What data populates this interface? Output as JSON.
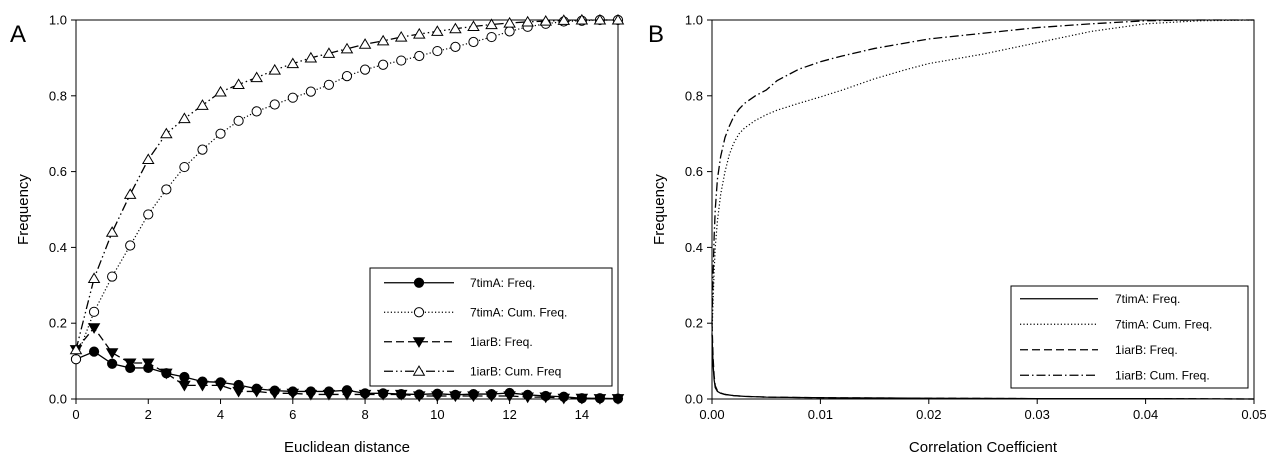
{
  "chart_data": [
    {
      "type": "line",
      "panel_label": "A",
      "xlabel": "Euclidean distance",
      "ylabel": "Frequency",
      "xlim": [
        0,
        15
      ],
      "ylim": [
        0,
        1.0
      ],
      "x_ticks": [
        0,
        2,
        4,
        6,
        8,
        10,
        12,
        14
      ],
      "x_tick_labels": [
        "0",
        "2",
        "4",
        "6",
        "8",
        "10",
        "12",
        "14"
      ],
      "y_ticks": [
        0,
        0.2,
        0.4,
        0.6,
        0.8,
        1.0
      ],
      "y_tick_labels": [
        "0.0",
        "0.2",
        "0.4",
        "0.6",
        "0.8",
        "1.0"
      ],
      "grid": false,
      "legend_position": "bottom-right",
      "x": [
        0,
        0.5,
        1,
        1.5,
        2,
        2.5,
        3,
        3.5,
        4,
        4.5,
        5,
        5.5,
        6,
        6.5,
        7,
        7.5,
        8,
        8.5,
        9,
        9.5,
        10,
        10.5,
        11,
        11.5,
        12,
        12.5,
        13,
        13.5,
        14,
        14.5,
        15
      ],
      "series": [
        {
          "name": "7timA: Freq.",
          "marker": "filled-circle",
          "line": "solid",
          "values": [
            0.105,
            0.125,
            0.093,
            0.082,
            0.082,
            0.068,
            0.058,
            0.046,
            0.044,
            0.037,
            0.027,
            0.022,
            0.02,
            0.02,
            0.02,
            0.023,
            0.015,
            0.015,
            0.013,
            0.012,
            0.014,
            0.011,
            0.013,
            0.013,
            0.016,
            0.011,
            0.008,
            0.006,
            0.002,
            0.002,
            0.001
          ]
        },
        {
          "name": "7timA: Cum. Freq.",
          "marker": "open-circle",
          "line": "dotted",
          "values": [
            0.105,
            0.23,
            0.323,
            0.405,
            0.487,
            0.553,
            0.612,
            0.658,
            0.7,
            0.734,
            0.759,
            0.777,
            0.795,
            0.811,
            0.829,
            0.852,
            0.869,
            0.882,
            0.893,
            0.905,
            0.918,
            0.929,
            0.942,
            0.955,
            0.97,
            0.982,
            0.99,
            0.996,
            0.998,
            1.0,
            1.0
          ]
        },
        {
          "name": "1iarB: Freq.",
          "marker": "filled-triangle-down",
          "line": "dashed",
          "values": [
            0.13,
            0.188,
            0.122,
            0.095,
            0.095,
            0.068,
            0.036,
            0.036,
            0.036,
            0.02,
            0.02,
            0.015,
            0.015,
            0.012,
            0.012,
            0.012,
            0.012,
            0.012,
            0.012,
            0.008,
            0.008,
            0.008,
            0.008,
            0.008,
            0.008,
            0.005,
            0.005,
            0.002,
            0.002,
            0.001,
            0.001
          ]
        },
        {
          "name": "1iarB: Cum. Freq",
          "marker": "open-triangle-up",
          "line": "dash-dot-dot",
          "values": [
            0.13,
            0.318,
            0.44,
            0.54,
            0.632,
            0.7,
            0.74,
            0.775,
            0.81,
            0.83,
            0.848,
            0.868,
            0.885,
            0.9,
            0.912,
            0.924,
            0.936,
            0.945,
            0.955,
            0.963,
            0.97,
            0.977,
            0.983,
            0.988,
            0.992,
            0.995,
            0.997,
            0.999,
            1.0,
            1.0,
            1.0
          ]
        }
      ]
    },
    {
      "type": "line",
      "panel_label": "B",
      "xlabel": "Correlation Coefficient",
      "ylabel": "Frequency",
      "xlim": [
        0,
        0.05
      ],
      "ylim": [
        0,
        1.0
      ],
      "x_ticks": [
        0,
        0.01,
        0.02,
        0.03,
        0.04,
        0.05
      ],
      "x_tick_labels": [
        "0.00",
        "0.01",
        "0.02",
        "0.03",
        "0.04",
        "0.05"
      ],
      "y_ticks": [
        0,
        0.2,
        0.4,
        0.6,
        0.8,
        1.0
      ],
      "y_tick_labels": [
        "0.0",
        "0.2",
        "0.4",
        "0.6",
        "0.8",
        "1.0"
      ],
      "grid": false,
      "legend_position": "bottom-right",
      "series": [
        {
          "name": "7timA: Freq.",
          "line": "solid",
          "x": [
            0,
            0.0001,
            0.0002,
            0.0003,
            0.0005,
            0.0008,
            0.0012,
            0.002,
            0.003,
            0.005,
            0.008,
            0.012,
            0.02,
            0.03,
            0.04,
            0.05
          ],
          "y": [
            0.17,
            0.09,
            0.05,
            0.03,
            0.02,
            0.015,
            0.012,
            0.009,
            0.007,
            0.005,
            0.004,
            0.003,
            0.002,
            0.001,
            0.001,
            0.0
          ]
        },
        {
          "name": "7timA: Cum. Freq.",
          "line": "dotted",
          "x": [
            0,
            0.0001,
            0.0002,
            0.0003,
            0.0005,
            0.0008,
            0.0012,
            0.0016,
            0.002,
            0.0025,
            0.003,
            0.004,
            0.005,
            0.006,
            0.008,
            0.01,
            0.012,
            0.015,
            0.018,
            0.02,
            0.025,
            0.03,
            0.035,
            0.04,
            0.045,
            0.05
          ],
          "y": [
            0.17,
            0.26,
            0.34,
            0.4,
            0.47,
            0.54,
            0.6,
            0.645,
            0.675,
            0.7,
            0.715,
            0.735,
            0.75,
            0.762,
            0.78,
            0.797,
            0.815,
            0.845,
            0.87,
            0.885,
            0.91,
            0.94,
            0.97,
            0.99,
            0.998,
            1.0
          ]
        },
        {
          "name": "1iarB: Freq.",
          "line": "dashed",
          "x": [
            0,
            0.0001,
            0.0002,
            0.0003,
            0.0005,
            0.0008,
            0.0012,
            0.002,
            0.003,
            0.005,
            0.008,
            0.012,
            0.02,
            0.03,
            0.04,
            0.05
          ],
          "y": [
            0.2,
            0.11,
            0.06,
            0.035,
            0.022,
            0.016,
            0.012,
            0.009,
            0.007,
            0.005,
            0.004,
            0.003,
            0.002,
            0.001,
            0.001,
            0.0
          ]
        },
        {
          "name": "1iarB: Cum. Freq.",
          "line": "dash-dot",
          "x": [
            0,
            0.0001,
            0.0002,
            0.0003,
            0.0005,
            0.0008,
            0.0012,
            0.0016,
            0.002,
            0.0025,
            0.003,
            0.004,
            0.005,
            0.006,
            0.008,
            0.01,
            0.012,
            0.015,
            0.018,
            0.02,
            0.025,
            0.03,
            0.035,
            0.04,
            0.045,
            0.05
          ],
          "y": [
            0.2,
            0.33,
            0.43,
            0.5,
            0.58,
            0.64,
            0.69,
            0.72,
            0.745,
            0.765,
            0.78,
            0.8,
            0.815,
            0.84,
            0.87,
            0.89,
            0.905,
            0.925,
            0.94,
            0.95,
            0.965,
            0.98,
            0.99,
            0.998,
            1.0,
            1.0
          ]
        }
      ]
    }
  ]
}
